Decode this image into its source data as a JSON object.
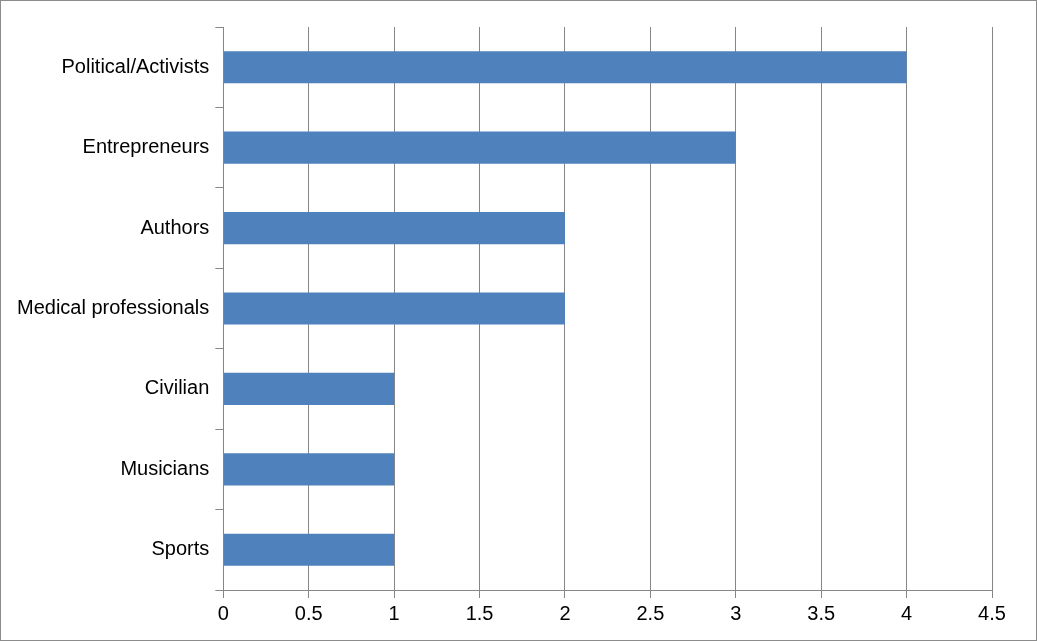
{
  "chart_data": {
    "type": "bar",
    "orientation": "horizontal",
    "categories": [
      "Political/Activists",
      "Entrepreneurs",
      "Authors",
      "Medical professionals",
      "Civilian",
      "Musicians",
      "Sports"
    ],
    "values": [
      4,
      3,
      2,
      2,
      1,
      1,
      1
    ],
    "color": "#4f81bd",
    "xlim": [
      0,
      4.5
    ],
    "xticks": [
      0,
      0.5,
      1,
      1.5,
      2,
      2.5,
      3,
      3.5,
      4,
      4.5
    ],
    "grid": "x"
  }
}
